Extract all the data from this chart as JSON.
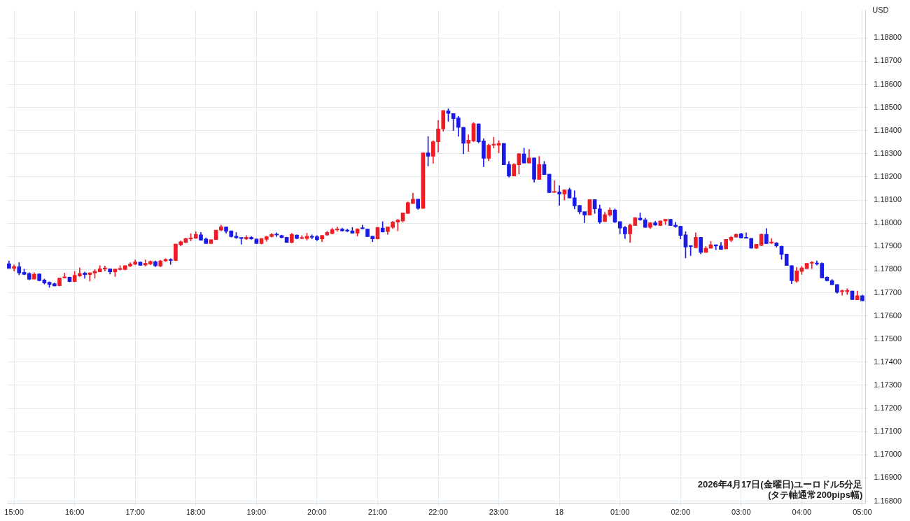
{
  "chart_data": {
    "type": "candlestick",
    "ylabel": "USD",
    "annotations": [
      "2026年4月17日(金曜日)ユーロドル5分足",
      "(タテ軸通常200pips幅)"
    ],
    "x": [
      "2026-04-17T14:55",
      "2026-04-17T15:00",
      "2026-04-17T15:05",
      "2026-04-17T15:10",
      "2026-04-17T15:15",
      "2026-04-17T15:20",
      "2026-04-17T15:25",
      "2026-04-17T15:30",
      "2026-04-17T15:35",
      "2026-04-17T15:40",
      "2026-04-17T15:45",
      "2026-04-17T15:50",
      "2026-04-17T15:55",
      "2026-04-17T16:00",
      "2026-04-17T16:05",
      "2026-04-17T16:10",
      "2026-04-17T16:15",
      "2026-04-17T16:20",
      "2026-04-17T16:25",
      "2026-04-17T16:30",
      "2026-04-17T16:35",
      "2026-04-17T16:40",
      "2026-04-17T16:45",
      "2026-04-17T16:50",
      "2026-04-17T16:55",
      "2026-04-17T17:00",
      "2026-04-17T17:05",
      "2026-04-17T17:10",
      "2026-04-17T17:15",
      "2026-04-17T17:20",
      "2026-04-17T17:25",
      "2026-04-17T17:30",
      "2026-04-17T17:35",
      "2026-04-17T17:40",
      "2026-04-17T17:45",
      "2026-04-17T17:50",
      "2026-04-17T17:55",
      "2026-04-17T18:00",
      "2026-04-17T18:05",
      "2026-04-17T18:10",
      "2026-04-17T18:15",
      "2026-04-17T18:20",
      "2026-04-17T18:25",
      "2026-04-17T18:30",
      "2026-04-17T18:35",
      "2026-04-17T18:40",
      "2026-04-17T18:45",
      "2026-04-17T18:50",
      "2026-04-17T18:55",
      "2026-04-17T19:00",
      "2026-04-17T19:05",
      "2026-04-17T19:10",
      "2026-04-17T19:15",
      "2026-04-17T19:20",
      "2026-04-17T19:25",
      "2026-04-17T19:30",
      "2026-04-17T19:35",
      "2026-04-17T19:40",
      "2026-04-17T19:45",
      "2026-04-17T19:50",
      "2026-04-17T19:55",
      "2026-04-17T20:00",
      "2026-04-17T20:05",
      "2026-04-17T20:10",
      "2026-04-17T20:15",
      "2026-04-17T20:20",
      "2026-04-17T20:25",
      "2026-04-17T20:30",
      "2026-04-17T20:35",
      "2026-04-17T20:40",
      "2026-04-17T20:45",
      "2026-04-17T20:50",
      "2026-04-17T20:55",
      "2026-04-17T21:00",
      "2026-04-17T21:05",
      "2026-04-17T21:10",
      "2026-04-17T21:15",
      "2026-04-17T21:20",
      "2026-04-17T21:25",
      "2026-04-17T21:30",
      "2026-04-17T21:35",
      "2026-04-17T21:40",
      "2026-04-17T21:45",
      "2026-04-17T21:50",
      "2026-04-17T21:55",
      "2026-04-17T22:00",
      "2026-04-17T22:05",
      "2026-04-17T22:10",
      "2026-04-17T22:15",
      "2026-04-17T22:20",
      "2026-04-17T22:25",
      "2026-04-17T22:30",
      "2026-04-17T22:35",
      "2026-04-17T22:40",
      "2026-04-17T22:45",
      "2026-04-17T22:50",
      "2026-04-17T22:55",
      "2026-04-17T23:00",
      "2026-04-17T23:05",
      "2026-04-17T23:10",
      "2026-04-17T23:15",
      "2026-04-17T23:20",
      "2026-04-17T23:25",
      "2026-04-17T23:30",
      "2026-04-17T23:35",
      "2026-04-17T23:40",
      "2026-04-17T23:45",
      "2026-04-17T23:50",
      "2026-04-17T23:55",
      "2026-04-18T00:00",
      "2026-04-18T00:05",
      "2026-04-18T00:10",
      "2026-04-18T00:15",
      "2026-04-18T00:20",
      "2026-04-18T00:25",
      "2026-04-18T00:30",
      "2026-04-18T00:35",
      "2026-04-18T00:40",
      "2026-04-18T00:45",
      "2026-04-18T00:50",
      "2026-04-18T00:55",
      "2026-04-18T01:00",
      "2026-04-18T01:05",
      "2026-04-18T01:10",
      "2026-04-18T01:15",
      "2026-04-18T01:20",
      "2026-04-18T01:25",
      "2026-04-18T01:30",
      "2026-04-18T01:35",
      "2026-04-18T01:40",
      "2026-04-18T01:45",
      "2026-04-18T01:50",
      "2026-04-18T01:55",
      "2026-04-18T02:00",
      "2026-04-18T02:05",
      "2026-04-18T02:10",
      "2026-04-18T02:15",
      "2026-04-18T02:20",
      "2026-04-18T02:25",
      "2026-04-18T02:30",
      "2026-04-18T02:35",
      "2026-04-18T02:40",
      "2026-04-18T02:45",
      "2026-04-18T02:50",
      "2026-04-18T02:55",
      "2026-04-18T03:00",
      "2026-04-18T03:05",
      "2026-04-18T03:10",
      "2026-04-18T03:15",
      "2026-04-18T03:20",
      "2026-04-18T03:25",
      "2026-04-18T03:30",
      "2026-04-18T03:35",
      "2026-04-18T03:40",
      "2026-04-18T03:45",
      "2026-04-18T03:50",
      "2026-04-18T03:55",
      "2026-04-18T04:00",
      "2026-04-18T04:05",
      "2026-04-18T04:10",
      "2026-04-18T04:15",
      "2026-04-18T04:20",
      "2026-04-18T04:25",
      "2026-04-18T04:30",
      "2026-04-18T04:35",
      "2026-04-18T04:40",
      "2026-04-18T04:45",
      "2026-04-18T04:50",
      "2026-04-18T04:55",
      "2026-04-18T05:00"
    ],
    "ohlc": [
      [
        1.17825,
        1.17837,
        1.17805,
        1.17805
      ],
      [
        1.17805,
        1.1782,
        1.17793,
        1.17813
      ],
      [
        1.17812,
        1.1783,
        1.17777,
        1.17785
      ],
      [
        1.17788,
        1.17802,
        1.17777,
        1.17779
      ],
      [
        1.17783,
        1.17787,
        1.17755,
        1.17758
      ],
      [
        1.17759,
        1.17787,
        1.17758,
        1.1778
      ],
      [
        1.17781,
        1.17781,
        1.17751,
        1.17752
      ],
      [
        1.17755,
        1.17759,
        1.17737,
        1.17742
      ],
      [
        1.17745,
        1.17747,
        1.17723,
        1.17735
      ],
      [
        1.17739,
        1.17742,
        1.17729,
        1.17729
      ],
      [
        1.1773,
        1.17763,
        1.17729,
        1.17763
      ],
      [
        1.17764,
        1.17785,
        1.17763,
        1.17765
      ],
      [
        1.17767,
        1.17768,
        1.17747,
        1.17748
      ],
      [
        1.17748,
        1.17792,
        1.17747,
        1.17775
      ],
      [
        1.17772,
        1.17807,
        1.1777,
        1.17783
      ],
      [
        1.17785,
        1.1779,
        1.17762,
        1.17778
      ],
      [
        1.17778,
        1.17786,
        1.1775,
        1.17786
      ],
      [
        1.17785,
        1.178,
        1.17762,
        1.17793
      ],
      [
        1.1779,
        1.17817,
        1.1779,
        1.17803
      ],
      [
        1.17802,
        1.17815,
        1.17793,
        1.17805
      ],
      [
        1.17803,
        1.17803,
        1.1778,
        1.1779
      ],
      [
        1.1779,
        1.17802,
        1.1777,
        1.17802
      ],
      [
        1.178,
        1.17817,
        1.17797,
        1.17805
      ],
      [
        1.178,
        1.17817,
        1.17798,
        1.17817
      ],
      [
        1.17815,
        1.1783,
        1.17812,
        1.17824
      ],
      [
        1.17823,
        1.17842,
        1.1782,
        1.17833
      ],
      [
        1.17832,
        1.17833,
        1.17818,
        1.17818
      ],
      [
        1.17819,
        1.17842,
        1.17815,
        1.17827
      ],
      [
        1.17824,
        1.17838,
        1.1782,
        1.17835
      ],
      [
        1.17834,
        1.17837,
        1.17812,
        1.17816
      ],
      [
        1.17815,
        1.1784,
        1.17812,
        1.17837
      ],
      [
        1.17837,
        1.17847,
        1.17835,
        1.17844
      ],
      [
        1.17842,
        1.17847,
        1.17822,
        1.17839
      ],
      [
        1.17839,
        1.1791,
        1.17839,
        1.1791
      ],
      [
        1.17907,
        1.17924,
        1.17902,
        1.1792
      ],
      [
        1.17917,
        1.17936,
        1.17915,
        1.17934
      ],
      [
        1.17932,
        1.17955,
        1.17924,
        1.17935
      ],
      [
        1.17935,
        1.17964,
        1.17934,
        1.17952
      ],
      [
        1.1795,
        1.1796,
        1.17927,
        1.17927
      ],
      [
        1.17932,
        1.17937,
        1.17912,
        1.17912
      ],
      [
        1.17912,
        1.17929,
        1.17912,
        1.17929
      ],
      [
        1.17929,
        1.1797,
        1.17929,
        1.1797
      ],
      [
        1.1797,
        1.17992,
        1.17967,
        1.17985
      ],
      [
        1.17984,
        1.17984,
        1.17957,
        1.17965
      ],
      [
        1.17967,
        1.17967,
        1.1794,
        1.17942
      ],
      [
        1.17944,
        1.1796,
        1.17934,
        1.17937
      ],
      [
        1.17937,
        1.17937,
        1.17909,
        1.17934
      ],
      [
        1.17932,
        1.17947,
        1.17929,
        1.17939
      ],
      [
        1.17939,
        1.17942,
        1.1793,
        1.17932
      ],
      [
        1.17932,
        1.17932,
        1.17912,
        1.17912
      ],
      [
        1.17912,
        1.17934,
        1.1791,
        1.17934
      ],
      [
        1.1793,
        1.17944,
        1.17922,
        1.17942
      ],
      [
        1.17942,
        1.17956,
        1.1794,
        1.17952
      ],
      [
        1.17952,
        1.17959,
        1.17942,
        1.17949
      ],
      [
        1.17947,
        1.17949,
        1.17936,
        1.17938
      ],
      [
        1.17939,
        1.1794,
        1.17917,
        1.17917
      ],
      [
        1.17917,
        1.17956,
        1.17915,
        1.17952
      ],
      [
        1.17949,
        1.1795,
        1.17932,
        1.17934
      ],
      [
        1.17934,
        1.17947,
        1.17932,
        1.17937
      ],
      [
        1.17934,
        1.17957,
        1.17927,
        1.17944
      ],
      [
        1.17942,
        1.1795,
        1.17932,
        1.17939
      ],
      [
        1.17942,
        1.17947,
        1.17924,
        1.17929
      ],
      [
        1.17932,
        1.17947,
        1.1792,
        1.17947
      ],
      [
        1.17949,
        1.17965,
        1.17947,
        1.1796
      ],
      [
        1.17955,
        1.17979,
        1.17954,
        1.17972
      ],
      [
        1.17971,
        1.17984,
        1.17965,
        1.17975
      ],
      [
        1.17975,
        1.17979,
        1.17965,
        1.17967
      ],
      [
        1.1797,
        1.17975,
        1.17963,
        1.17966
      ],
      [
        1.17967,
        1.17982,
        1.17957,
        1.17957
      ],
      [
        1.17957,
        1.17977,
        1.17945,
        1.17975
      ],
      [
        1.17979,
        1.17992,
        1.17976,
        1.17976
      ],
      [
        1.17975,
        1.17975,
        1.17942,
        1.17942
      ],
      [
        1.17944,
        1.17944,
        1.1792,
        1.17932
      ],
      [
        1.17932,
        1.17982,
        1.17932,
        1.17982
      ],
      [
        1.17979,
        1.18007,
        1.17962,
        1.17962
      ],
      [
        1.17964,
        1.17984,
        1.17952,
        1.17984
      ],
      [
        1.17982,
        1.18009,
        1.17977,
        1.18005
      ],
      [
        1.18005,
        1.18017,
        1.17967,
        1.18014
      ],
      [
        1.1801,
        1.18045,
        1.18004,
        1.18045
      ],
      [
        1.18042,
        1.18092,
        1.18042,
        1.18089
      ],
      [
        1.18085,
        1.1813,
        1.18085,
        1.18104
      ],
      [
        1.18104,
        1.18104,
        1.1806,
        1.18064
      ],
      [
        1.18064,
        1.18304,
        1.18064,
        1.18304
      ],
      [
        1.18304,
        1.18374,
        1.18247,
        1.18289
      ],
      [
        1.18289,
        1.18357,
        1.18259,
        1.18352
      ],
      [
        1.18352,
        1.18444,
        1.18307,
        1.18407
      ],
      [
        1.18407,
        1.18487,
        1.18397,
        1.18487
      ],
      [
        1.18485,
        1.18494,
        1.1844,
        1.18474
      ],
      [
        1.18474,
        1.18474,
        1.184,
        1.18452
      ],
      [
        1.18455,
        1.18462,
        1.18375,
        1.18414
      ],
      [
        1.18414,
        1.18414,
        1.183,
        1.18345
      ],
      [
        1.18345,
        1.18382,
        1.1831,
        1.18359
      ],
      [
        1.18355,
        1.18435,
        1.18352,
        1.1843
      ],
      [
        1.18429,
        1.18429,
        1.18347,
        1.18352
      ],
      [
        1.18355,
        1.18365,
        1.18244,
        1.1828
      ],
      [
        1.1828,
        1.18342,
        1.1827,
        1.18337
      ],
      [
        1.18337,
        1.18372,
        1.18325,
        1.18342
      ],
      [
        1.18337,
        1.18357,
        1.18304,
        1.18345
      ],
      [
        1.18345,
        1.18345,
        1.18252,
        1.18252
      ],
      [
        1.18254,
        1.18267,
        1.18199,
        1.18204
      ],
      [
        1.18204,
        1.18258,
        1.18204,
        1.18254
      ],
      [
        1.18252,
        1.18302,
        1.18212,
        1.183
      ],
      [
        1.18299,
        1.18324,
        1.1826,
        1.1826
      ],
      [
        1.1826,
        1.18319,
        1.1826,
        1.18282
      ],
      [
        1.18282,
        1.18282,
        1.18177,
        1.1819
      ],
      [
        1.18189,
        1.18289,
        1.18189,
        1.18254
      ],
      [
        1.18254,
        1.18267,
        1.1821,
        1.1821
      ],
      [
        1.18212,
        1.18212,
        1.18132,
        1.18132
      ],
      [
        1.18133,
        1.18184,
        1.18133,
        1.18136
      ],
      [
        1.18135,
        1.18162,
        1.18077,
        1.18126
      ],
      [
        1.18126,
        1.18144,
        1.181,
        1.18144
      ],
      [
        1.18145,
        1.18152,
        1.18109,
        1.18109
      ],
      [
        1.1811,
        1.1814,
        1.18062,
        1.18075
      ],
      [
        1.18077,
        1.18077,
        1.1804,
        1.18049
      ],
      [
        1.1805,
        1.1805,
        1.18002,
        1.18035
      ],
      [
        1.18035,
        1.18102,
        1.18035,
        1.18102
      ],
      [
        1.18102,
        1.18102,
        1.18042,
        1.18062
      ],
      [
        1.18062,
        1.18079,
        1.17999,
        1.18005
      ],
      [
        1.18007,
        1.18047,
        1.18007,
        1.18037
      ],
      [
        1.18035,
        1.18067,
        1.18029,
        1.18057
      ],
      [
        1.18057,
        1.18062,
        1.18002,
        1.18005
      ],
      [
        1.18007,
        1.18007,
        1.17954,
        1.17979
      ],
      [
        1.17982,
        1.17987,
        1.17934,
        1.17954
      ],
      [
        1.17954,
        1.17997,
        1.17917,
        1.17992
      ],
      [
        1.1799,
        1.18024,
        1.1799,
        1.18024
      ],
      [
        1.18022,
        1.18045,
        1.18012,
        1.18014
      ],
      [
        1.18015,
        1.18022,
        1.17982,
        1.17982
      ],
      [
        1.17982,
        1.18002,
        1.17977,
        1.18002
      ],
      [
        1.18002,
        1.18009,
        1.1799,
        1.17992
      ],
      [
        1.1799,
        1.1801,
        1.1799,
        1.1801
      ],
      [
        1.1801,
        1.18017,
        1.17994,
        1.18017
      ],
      [
        1.18017,
        1.18017,
        1.1799,
        1.1799
      ],
      [
        1.17992,
        1.18004,
        1.17982,
        1.17985
      ],
      [
        1.17987,
        1.17987,
        1.17932,
        1.17947
      ],
      [
        1.1795,
        1.17964,
        1.1785,
        1.17897
      ],
      [
        1.17902,
        1.17902,
        1.1786,
        1.17899
      ],
      [
        1.17894,
        1.17959,
        1.17894,
        1.17939
      ],
      [
        1.17939,
        1.17939,
        1.17867,
        1.17874
      ],
      [
        1.17874,
        1.17899,
        1.17874,
        1.17892
      ],
      [
        1.17892,
        1.17922,
        1.17892,
        1.17907
      ],
      [
        1.17907,
        1.17907,
        1.17885,
        1.17902
      ],
      [
        1.17902,
        1.17917,
        1.17887,
        1.17887
      ],
      [
        1.17889,
        1.1793,
        1.17889,
        1.1793
      ],
      [
        1.17927,
        1.17944,
        1.1792,
        1.17939
      ],
      [
        1.1794,
        1.17954,
        1.1794,
        1.17952
      ],
      [
        1.17954,
        1.17957,
        1.17935,
        1.17937
      ],
      [
        1.17938,
        1.17959,
        1.17935,
        1.17935
      ],
      [
        1.17935,
        1.17935,
        1.17892,
        1.17892
      ],
      [
        1.17892,
        1.17909,
        1.1789,
        1.17909
      ],
      [
        1.17904,
        1.17954,
        1.17902,
        1.17952
      ],
      [
        1.17952,
        1.17977,
        1.17912,
        1.17912
      ],
      [
        1.17914,
        1.17934,
        1.17912,
        1.17917
      ],
      [
        1.17915,
        1.17917,
        1.17897,
        1.17902
      ],
      [
        1.179,
        1.17902,
        1.17844,
        1.17865
      ],
      [
        1.17867,
        1.17867,
        1.17817,
        1.17817
      ],
      [
        1.17817,
        1.17817,
        1.17739,
        1.17752
      ],
      [
        1.17749,
        1.17809,
        1.17744,
        1.17794
      ],
      [
        1.17792,
        1.17814,
        1.17779,
        1.17807
      ],
      [
        1.17804,
        1.17827,
        1.17804,
        1.17827
      ],
      [
        1.17827,
        1.17835,
        1.17804,
        1.1783
      ],
      [
        1.17827,
        1.17837,
        1.17819,
        1.17824
      ],
      [
        1.17827,
        1.1783,
        1.17764,
        1.17764
      ],
      [
        1.17767,
        1.17769,
        1.1775,
        1.17752
      ],
      [
        1.17752,
        1.17757,
        1.17734,
        1.17734
      ],
      [
        1.17735,
        1.17735,
        1.17697,
        1.17702
      ],
      [
        1.17704,
        1.17712,
        1.17689,
        1.17707
      ],
      [
        1.17705,
        1.17717,
        1.17692,
        1.17709
      ],
      [
        1.17707,
        1.17707,
        1.1767,
        1.1767
      ],
      [
        1.17669,
        1.17707,
        1.17669,
        1.17687
      ],
      [
        1.17687,
        1.1769,
        1.17665,
        1.17665
      ]
    ],
    "colors": [
      "#1a1ae6",
      "#ee1c25",
      "#1a1ae6",
      "#1a1ae6",
      "#1a1ae6",
      "#ee1c25",
      "#1a1ae6",
      "#1a1ae6",
      "#1a1ae6",
      "#1a1ae6",
      "#ee1c25",
      "#ee1c25",
      "#1a1ae6",
      "#ee1c25",
      "#ee1c25",
      "#1a1ae6",
      "#ee1c25",
      "#ee1c25",
      "#ee1c25",
      "#ee1c25",
      "#1a1ae6",
      "#ee1c25",
      "#ee1c25",
      "#ee1c25",
      "#ee1c25",
      "#ee1c25",
      "#1a1ae6",
      "#ee1c25",
      "#ee1c25",
      "#1a1ae6",
      "#ee1c25",
      "#ee1c25",
      "#1a1ae6",
      "#ee1c25",
      "#ee1c25",
      "#ee1c25",
      "#ee1c25",
      "#ee1c25",
      "#1a1ae6",
      "#1a1ae6",
      "#ee1c25",
      "#ee1c25",
      "#ee1c25",
      "#1a1ae6",
      "#1a1ae6",
      "#1a1ae6",
      "#1a1ae6",
      "#ee1c25",
      "#1a1ae6",
      "#1a1ae6",
      "#ee1c25",
      "#ee1c25",
      "#ee1c25",
      "#1a1ae6",
      "#1a1ae6",
      "#1a1ae6",
      "#ee1c25",
      "#1a1ae6",
      "#ee1c25",
      "#ee1c25",
      "#1a1ae6",
      "#1a1ae6",
      "#ee1c25",
      "#ee1c25",
      "#ee1c25",
      "#ee1c25",
      "#1a1ae6",
      "#1a1ae6",
      "#1a1ae6",
      "#ee1c25",
      "#1a1ae6",
      "#1a1ae6",
      "#1a1ae6",
      "#ee1c25",
      "#1a1ae6",
      "#ee1c25",
      "#ee1c25",
      "#ee1c25",
      "#ee1c25",
      "#ee1c25",
      "#ee1c25",
      "#1a1ae6",
      "#ee1c25",
      "#1a1ae6",
      "#ee1c25",
      "#ee1c25",
      "#ee1c25",
      "#1a1ae6",
      "#1a1ae6",
      "#1a1ae6",
      "#1a1ae6",
      "#ee1c25",
      "#ee1c25",
      "#1a1ae6",
      "#1a1ae6",
      "#ee1c25",
      "#ee1c25",
      "#ee1c25",
      "#1a1ae6",
      "#1a1ae6",
      "#ee1c25",
      "#ee1c25",
      "#1a1ae6",
      "#ee1c25",
      "#1a1ae6",
      "#ee1c25",
      "#1a1ae6",
      "#1a1ae6",
      "#ee1c25",
      "#1a1ae6",
      "#ee1c25",
      "#1a1ae6",
      "#1a1ae6",
      "#1a1ae6",
      "#1a1ae6",
      "#ee1c25",
      "#1a1ae6",
      "#1a1ae6",
      "#ee1c25",
      "#ee1c25",
      "#1a1ae6",
      "#1a1ae6",
      "#1a1ae6",
      "#ee1c25",
      "#ee1c25",
      "#1a1ae6",
      "#1a1ae6",
      "#ee1c25",
      "#1a1ae6",
      "#ee1c25",
      "#ee1c25",
      "#1a1ae6",
      "#1a1ae6",
      "#1a1ae6",
      "#1a1ae6",
      "#1a1ae6",
      "#ee1c25",
      "#1a1ae6",
      "#ee1c25",
      "#ee1c25",
      "#1a1ae6",
      "#1a1ae6",
      "#ee1c25",
      "#ee1c25",
      "#ee1c25",
      "#1a1ae6",
      "#1a1ae6",
      "#1a1ae6",
      "#ee1c25",
      "#ee1c25",
      "#1a1ae6",
      "#ee1c25",
      "#1a1ae6",
      "#1a1ae6",
      "#1a1ae6",
      "#1a1ae6",
      "#ee1c25",
      "#ee1c25",
      "#ee1c25",
      "#ee1c25",
      "#1a1ae6",
      "#1a1ae6",
      "#1a1ae6",
      "#1a1ae6",
      "#1a1ae6",
      "#ee1c25",
      "#ee1c25",
      "#1a1ae6",
      "#ee1c25",
      "#1a1ae6"
    ],
    "xlim": [
      "2026-04-17T14:53",
      "2026-04-18T05:03"
    ],
    "xticks": [
      {
        "value": "2026-04-17T15:00",
        "label": "15:00"
      },
      {
        "value": "2026-04-17T16:00",
        "label": "16:00"
      },
      {
        "value": "2026-04-17T17:00",
        "label": "17:00"
      },
      {
        "value": "2026-04-17T18:00",
        "label": "18:00"
      },
      {
        "value": "2026-04-17T19:00",
        "label": "19:00"
      },
      {
        "value": "2026-04-17T20:00",
        "label": "20:00"
      },
      {
        "value": "2026-04-17T21:00",
        "label": "21:00"
      },
      {
        "value": "2026-04-17T22:00",
        "label": "22:00"
      },
      {
        "value": "2026-04-17T23:00",
        "label": "23:00"
      },
      {
        "value": "2026-04-18",
        "label": "18"
      },
      {
        "value": "2026-04-18T01:00",
        "label": "01:00"
      },
      {
        "value": "2026-04-18T02:00",
        "label": "02:00"
      },
      {
        "value": "2026-04-18T03:00",
        "label": "03:00"
      },
      {
        "value": "2026-04-18T04:00",
        "label": "04:00"
      },
      {
        "value": "2026-04-18T05:00",
        "label": "05:00"
      }
    ],
    "ylim": [
      1.1679,
      1.1892
    ],
    "yticks": [
      {
        "value": 1.168,
        "label": "1.16800"
      },
      {
        "value": 1.169,
        "label": "1.16900"
      },
      {
        "value": 1.17,
        "label": "1.17000"
      },
      {
        "value": 1.171,
        "label": "1.17100"
      },
      {
        "value": 1.172,
        "label": "1.17200"
      },
      {
        "value": 1.173,
        "label": "1.17300"
      },
      {
        "value": 1.174,
        "label": "1.17400"
      },
      {
        "value": 1.175,
        "label": "1.17500"
      },
      {
        "value": 1.176,
        "label": "1.17600"
      },
      {
        "value": 1.177,
        "label": "1.17700"
      },
      {
        "value": 1.178,
        "label": "1.17800"
      },
      {
        "value": 1.179,
        "label": "1.17900"
      },
      {
        "value": 1.18,
        "label": "1.18000"
      },
      {
        "value": 1.181,
        "label": "1.18100"
      },
      {
        "value": 1.182,
        "label": "1.18200"
      },
      {
        "value": 1.183,
        "label": "1.18300"
      },
      {
        "value": 1.184,
        "label": "1.18400"
      },
      {
        "value": 1.185,
        "label": "1.18500"
      },
      {
        "value": 1.186,
        "label": "1.18600"
      },
      {
        "value": 1.187,
        "label": "1.18700"
      },
      {
        "value": 1.188,
        "label": "1.18800"
      }
    ],
    "grid": true
  }
}
